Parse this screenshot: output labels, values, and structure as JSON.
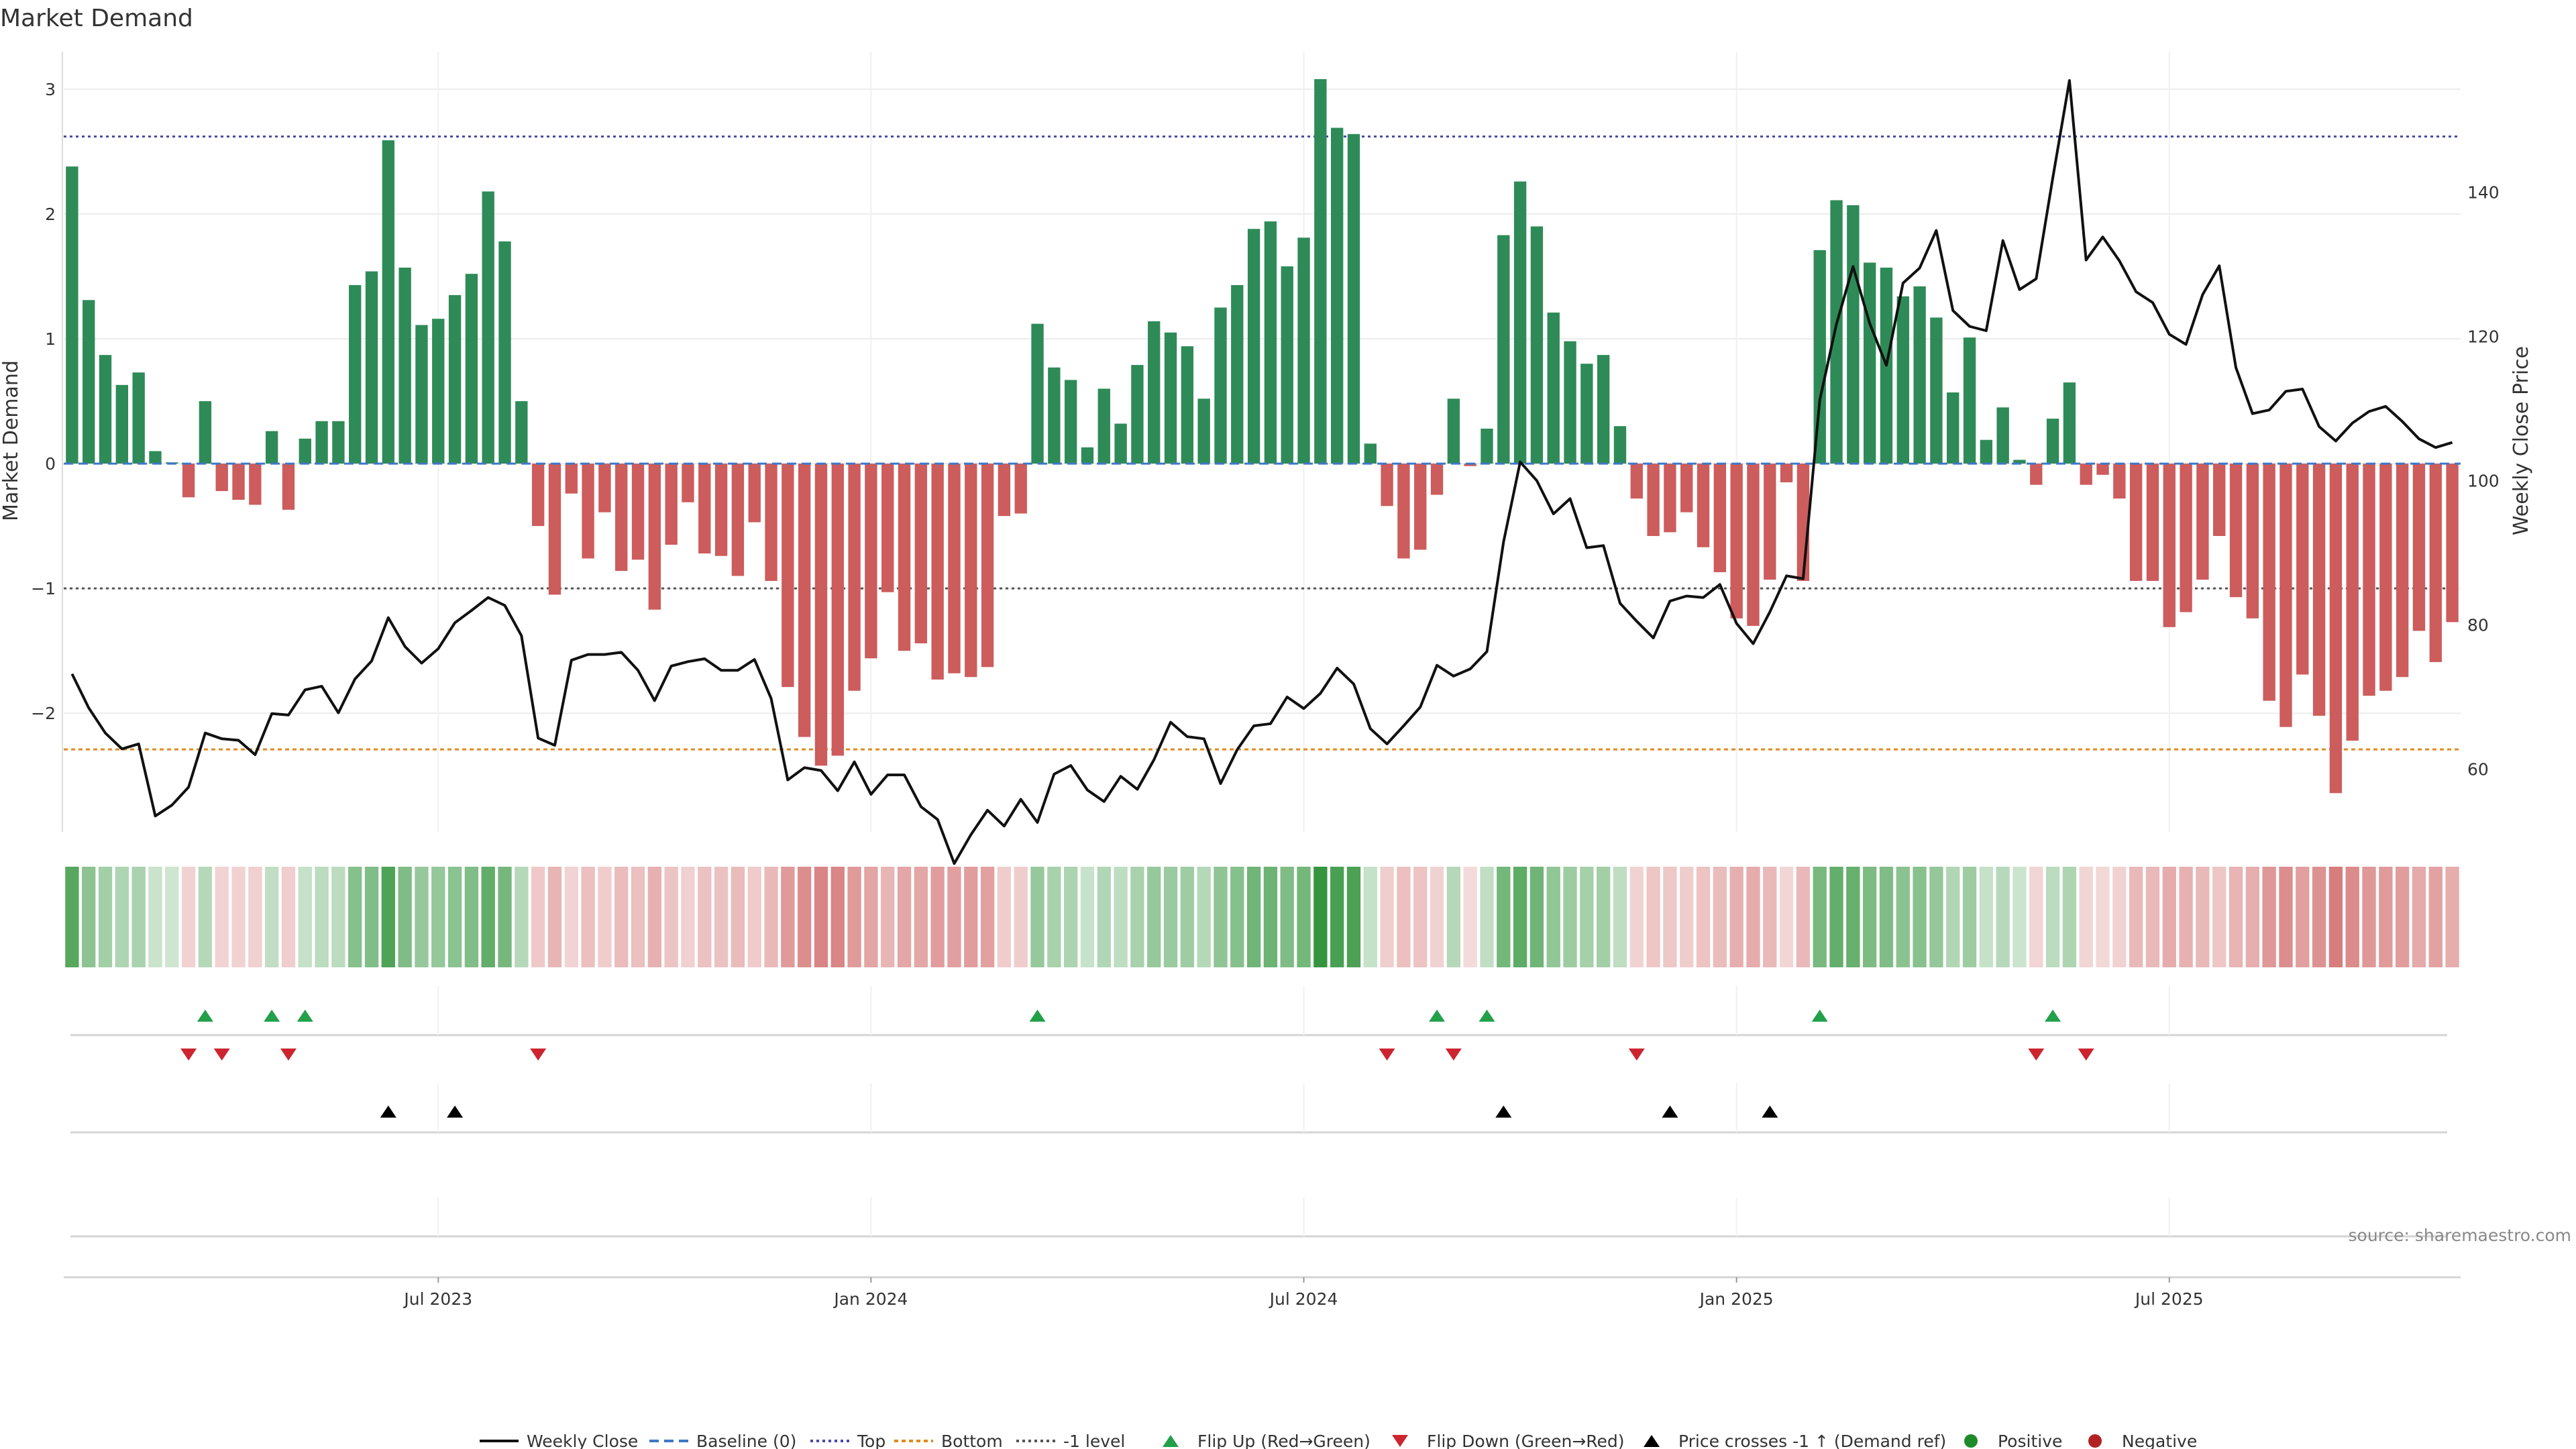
{
  "chart_data": {
    "type": "bar+line",
    "title": "Market Demand",
    "ylabel_left": "Market Demand",
    "ylabel_right": "Weekly Close Price",
    "ylim_left": [
      -2.95,
      3.3
    ],
    "yticks_left": [
      3,
      2,
      1,
      0,
      -1,
      -2
    ],
    "ytick_labels_left": [
      "3",
      "2",
      "1",
      "0",
      "−1",
      "−2"
    ],
    "ylim_right": [
      51.3,
      159.5
    ],
    "yticks_right": [
      140,
      120,
      100,
      80,
      60
    ],
    "ytick_labels_right": [
      "140",
      "120",
      "100",
      "80",
      "60"
    ],
    "x_start_week_index": 0,
    "x_ticks": [
      {
        "week": 22,
        "label": "Jul 2023"
      },
      {
        "week": 48,
        "label": "Jan 2024"
      },
      {
        "week": 74,
        "label": "Jul 2024"
      },
      {
        "week": 100,
        "label": "Jan 2025"
      },
      {
        "week": 126,
        "label": "Jul 2025"
      }
    ],
    "levels": {
      "top": 2.62,
      "bottom": -2.29,
      "minus_one": -1.0,
      "baseline": 0
    },
    "demand": [
      2.38,
      1.31,
      0.87,
      0.63,
      0.73,
      0.1,
      0.01,
      -0.27,
      0.5,
      -0.22,
      -0.29,
      -0.33,
      0.26,
      -0.37,
      0.2,
      0.34,
      0.34,
      1.43,
      1.54,
      2.59,
      1.57,
      1.11,
      1.16,
      1.35,
      1.52,
      2.18,
      1.78,
      0.5,
      -0.5,
      -1.05,
      -0.24,
      -0.76,
      -0.39,
      -0.86,
      -0.77,
      -1.17,
      -0.65,
      -0.31,
      -0.72,
      -0.74,
      -0.9,
      -0.47,
      -0.94,
      -1.79,
      -2.19,
      -2.42,
      -2.34,
      -1.82,
      -1.56,
      -1.03,
      -1.5,
      -1.44,
      -1.73,
      -1.68,
      -1.71,
      -1.63,
      -0.42,
      -0.4,
      1.12,
      0.77,
      0.67,
      0.13,
      0.6,
      0.32,
      0.79,
      1.14,
      1.05,
      0.94,
      0.52,
      1.25,
      1.43,
      1.88,
      1.94,
      1.58,
      1.81,
      3.08,
      2.69,
      2.64,
      0.16,
      -0.34,
      -0.76,
      -0.69,
      -0.25,
      0.52,
      -0.02,
      0.28,
      1.83,
      2.26,
      1.9,
      1.21,
      0.98,
      0.8,
      0.87,
      0.3,
      -0.28,
      -0.58,
      -0.55,
      -0.39,
      -0.67,
      -0.87,
      -1.24,
      -1.3,
      -0.93,
      -0.15,
      -0.94,
      1.71,
      2.11,
      2.07,
      1.61,
      1.57,
      1.34,
      1.42,
      1.17,
      0.57,
      1.01,
      0.19,
      0.45,
      0.03,
      -0.17,
      0.36,
      0.65,
      -0.17,
      -0.09,
      -0.28,
      -0.94,
      -0.94,
      -1.31,
      -1.19,
      -0.93,
      -0.58,
      -1.07,
      -1.24,
      -1.9,
      -2.11,
      -1.69,
      -2.02,
      -2.64,
      -2.22,
      -1.86,
      -1.82,
      -1.71,
      -1.34,
      -1.59,
      -1.27
    ],
    "close_price": [
      73.2,
      68.5,
      65.0,
      62.8,
      63.5,
      53.5,
      55.0,
      57.5,
      65.0,
      64.2,
      64.0,
      62.0,
      67.7,
      67.5,
      71.0,
      71.5,
      67.8,
      72.5,
      75.0,
      81.0,
      77.0,
      74.7,
      76.7,
      80.3,
      82.0,
      83.8,
      82.7,
      78.5,
      64.3,
      63.3,
      75.1,
      75.9,
      75.9,
      76.2,
      73.7,
      69.5,
      74.3,
      74.9,
      75.3,
      73.7,
      73.7,
      75.2,
      69.8,
      58.5,
      60.2,
      59.8,
      57.0,
      61.0,
      56.5,
      59.2,
      59.2,
      54.8,
      53.0,
      46.9,
      50.9,
      54.3,
      52.1,
      55.8,
      52.6,
      59.3,
      60.5,
      57.1,
      55.5,
      59.0,
      57.2,
      61.3,
      66.5,
      64.5,
      64.2,
      58.0,
      62.7,
      66.0,
      66.3,
      70.0,
      68.4,
      70.5,
      74.0,
      71.8,
      65.6,
      63.5,
      66.0,
      68.6,
      74.4,
      72.9,
      73.9,
      76.3,
      91.5,
      102.6,
      100.0,
      95.4,
      97.5,
      90.7,
      91.0,
      83.0,
      80.5,
      78.2,
      83.3,
      84.0,
      83.8,
      85.6,
      80.2,
      77.4,
      81.8,
      86.8,
      86.4,
      111.2,
      121.7,
      129.7,
      121.8,
      116.0,
      127.4,
      129.5,
      134.7,
      123.6,
      121.4,
      120.8,
      133.3,
      126.5,
      128.0,
      142.0,
      155.5,
      130.6,
      133.8,
      130.5,
      126.2,
      124.7,
      120.3,
      118.9,
      125.8,
      129.8,
      115.7,
      109.3,
      109.8,
      112.4,
      112.7,
      107.5,
      105.5,
      108.0,
      109.6,
      110.3,
      108.2,
      105.8,
      104.6,
      105.3
    ],
    "flip_up_weeks": [
      8,
      12,
      14,
      58,
      82,
      85,
      105,
      119
    ],
    "flip_down_weeks": [
      7,
      9,
      13,
      28,
      79,
      83,
      94,
      118,
      121
    ],
    "price_cross_weeks": [
      19,
      23,
      86,
      96,
      102
    ],
    "strip_legend": [
      "Positive",
      "Negative"
    ],
    "legend": [
      "Weekly Close",
      "Baseline (0)",
      "Top",
      "Bottom",
      "-1 level",
      "Flip Up (Red→Green)",
      "Flip Down (Green→Red)",
      "Price crosses -1 ↑ (Demand ref)",
      "Positive",
      "Negative"
    ],
    "source": "source: sharemaestro.com"
  },
  "colors": {
    "positive": "#2e8b57",
    "negative": "#cd5c5c",
    "line": "#111111",
    "top_level": "#4a4aa8",
    "bottom_level": "#e08a1e",
    "minus_one_level": "#555555",
    "baseline": "#3f78c5",
    "flip_up": "#22a04a",
    "flip_down": "#cc2530",
    "cross": "#000000",
    "positive_dot": "#1f8a2a",
    "negative_dot": "#b22222"
  }
}
